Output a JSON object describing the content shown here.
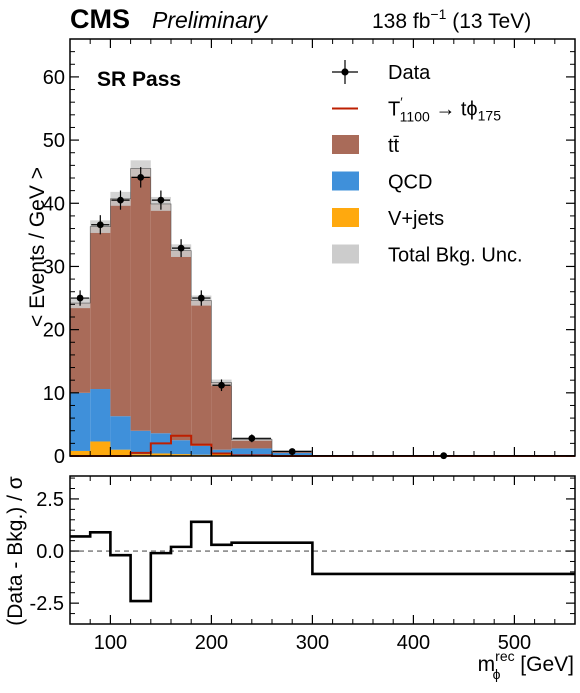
{
  "header": {
    "experiment": "CMS",
    "status": "Preliminary",
    "lumi_main": "138 fb",
    "lumi_exp": "−1",
    "lumi_energy": "(13 TeV)"
  },
  "region_label": "SR Pass",
  "chart_data": [
    {
      "type": "histogram",
      "panel": "main",
      "ylabel": "< Events / GeV >",
      "xlim": [
        60,
        560
      ],
      "ylim": [
        0,
        66
      ],
      "yticks": [
        0,
        10,
        20,
        30,
        40,
        50,
        60
      ],
      "bin_edges": [
        60,
        80,
        100,
        120,
        140,
        160,
        180,
        200,
        220,
        260,
        300,
        560
      ],
      "stack": [
        {
          "name": "V+jets",
          "color": "#ffa90e",
          "values": [
            0.8,
            2.3,
            1.0,
            0.3,
            0.4,
            0.3,
            0.2,
            0.3,
            0.2,
            0.1,
            0.0
          ]
        },
        {
          "name": "QCD",
          "color": "#3f90da",
          "values": [
            9.2,
            8.3,
            5.3,
            3.7,
            3.2,
            2.2,
            1.4,
            0.7,
            1.0,
            0.4,
            0.0
          ]
        },
        {
          "name": "tt̄",
          "color": "#a96b59",
          "values": [
            14.2,
            25.7,
            34.4,
            41.5,
            36.3,
            30.0,
            23.0,
            10.6,
            1.4,
            0.3,
            0.05
          ]
        }
      ],
      "total_bkg_unc": [
        0.8,
        1.0,
        1.1,
        1.3,
        1.1,
        1.0,
        0.8,
        0.5,
        0.2,
        0.1,
        0.02
      ],
      "signal": {
        "name": "T′1100 → tϕ175",
        "color": "#bd1f01",
        "values": [
          0.0,
          0.0,
          0.0,
          0.5,
          2.0,
          3.2,
          1.8,
          0.4,
          0.1,
          0.0,
          0.0
        ]
      },
      "data": {
        "name": "Data",
        "x": [
          70,
          90,
          110,
          130,
          150,
          170,
          190,
          210,
          240,
          280,
          430
        ],
        "y": [
          25.0,
          36.6,
          40.5,
          44.1,
          40.5,
          32.9,
          25.0,
          11.2,
          2.8,
          0.7,
          0.05
        ],
        "err": [
          0.9,
          1.2,
          1.2,
          1.3,
          1.2,
          1.1,
          0.9,
          0.6,
          0.3,
          0.15,
          0.02
        ]
      },
      "legend": {
        "position": "top-right",
        "entries": [
          {
            "label": "Data",
            "style": "marker"
          },
          {
            "label_main": "T",
            "label_prime": "′",
            "label_sub1": "1100",
            "label_arrow": " → tϕ",
            "label_sub2": "175",
            "style": "line",
            "color": "#bd1f01"
          },
          {
            "label": "tt̄",
            "style": "patch",
            "color": "#a96b59"
          },
          {
            "label": "QCD",
            "style": "patch",
            "color": "#3f90da"
          },
          {
            "label": "V+jets",
            "style": "patch",
            "color": "#ffa90e"
          },
          {
            "label": "Total Bkg. Unc.",
            "style": "patch",
            "color": "#cccccc"
          }
        ]
      }
    },
    {
      "type": "line",
      "panel": "ratio",
      "ylabel": "(Data - Bkg.) / σ",
      "xlabel_main": "m",
      "xlabel_sup": "rec",
      "xlabel_sub": "ϕ",
      "xlabel_unit": "[GeV]",
      "xlim": [
        60,
        560
      ],
      "ylim": [
        -3.5,
        3.6
      ],
      "yticks": [
        -2.5,
        0.0,
        2.5
      ],
      "ytick_labels": [
        "-2.5",
        "0.0",
        "2.5"
      ],
      "xticks": [
        100,
        200,
        300,
        400,
        500
      ],
      "bin_edges": [
        60,
        80,
        100,
        120,
        140,
        160,
        180,
        200,
        220,
        260,
        300,
        560
      ],
      "values": [
        0.7,
        0.9,
        -0.2,
        -2.4,
        -0.1,
        0.2,
        1.4,
        0.3,
        0.4,
        0.4,
        -1.1
      ],
      "reference_line": 0
    }
  ]
}
